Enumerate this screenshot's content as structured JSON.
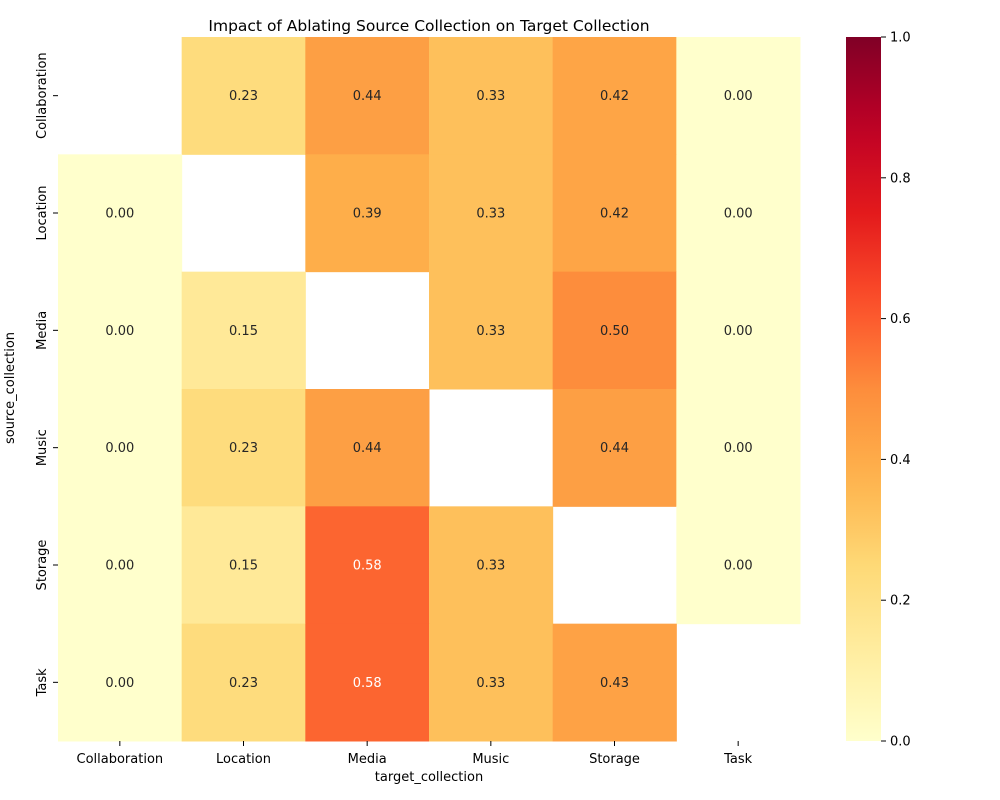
{
  "chart_data": {
    "type": "heatmap",
    "title": "Impact of Ablating Source Collection on Target Collection",
    "xlabel": "target_collection",
    "ylabel": "source_collection",
    "x_categories": [
      "Collaboration",
      "Location",
      "Media",
      "Music",
      "Storage",
      "Task"
    ],
    "y_categories": [
      "Collaboration",
      "Location",
      "Media",
      "Music",
      "Storage",
      "Task"
    ],
    "values": [
      [
        null,
        0.23,
        0.44,
        0.33,
        0.42,
        0.0
      ],
      [
        0.0,
        null,
        0.39,
        0.33,
        0.42,
        0.0
      ],
      [
        0.0,
        0.15,
        null,
        0.33,
        0.5,
        0.0
      ],
      [
        0.0,
        0.23,
        0.44,
        null,
        0.44,
        0.0
      ],
      [
        0.0,
        0.15,
        0.58,
        0.33,
        null,
        0.0
      ],
      [
        0.0,
        0.23,
        0.58,
        0.33,
        0.43,
        null
      ]
    ],
    "value_format": "0.00",
    "colormap": "YlOrRd",
    "vmin": 0.0,
    "vmax": 1.0,
    "colorbar_ticks": [
      0.0,
      0.2,
      0.4,
      0.6,
      0.8,
      1.0
    ],
    "colorbar_tick_labels": [
      "0.0",
      "0.2",
      "0.4",
      "0.6",
      "0.8",
      "1.0"
    ],
    "legend_position": "right"
  }
}
